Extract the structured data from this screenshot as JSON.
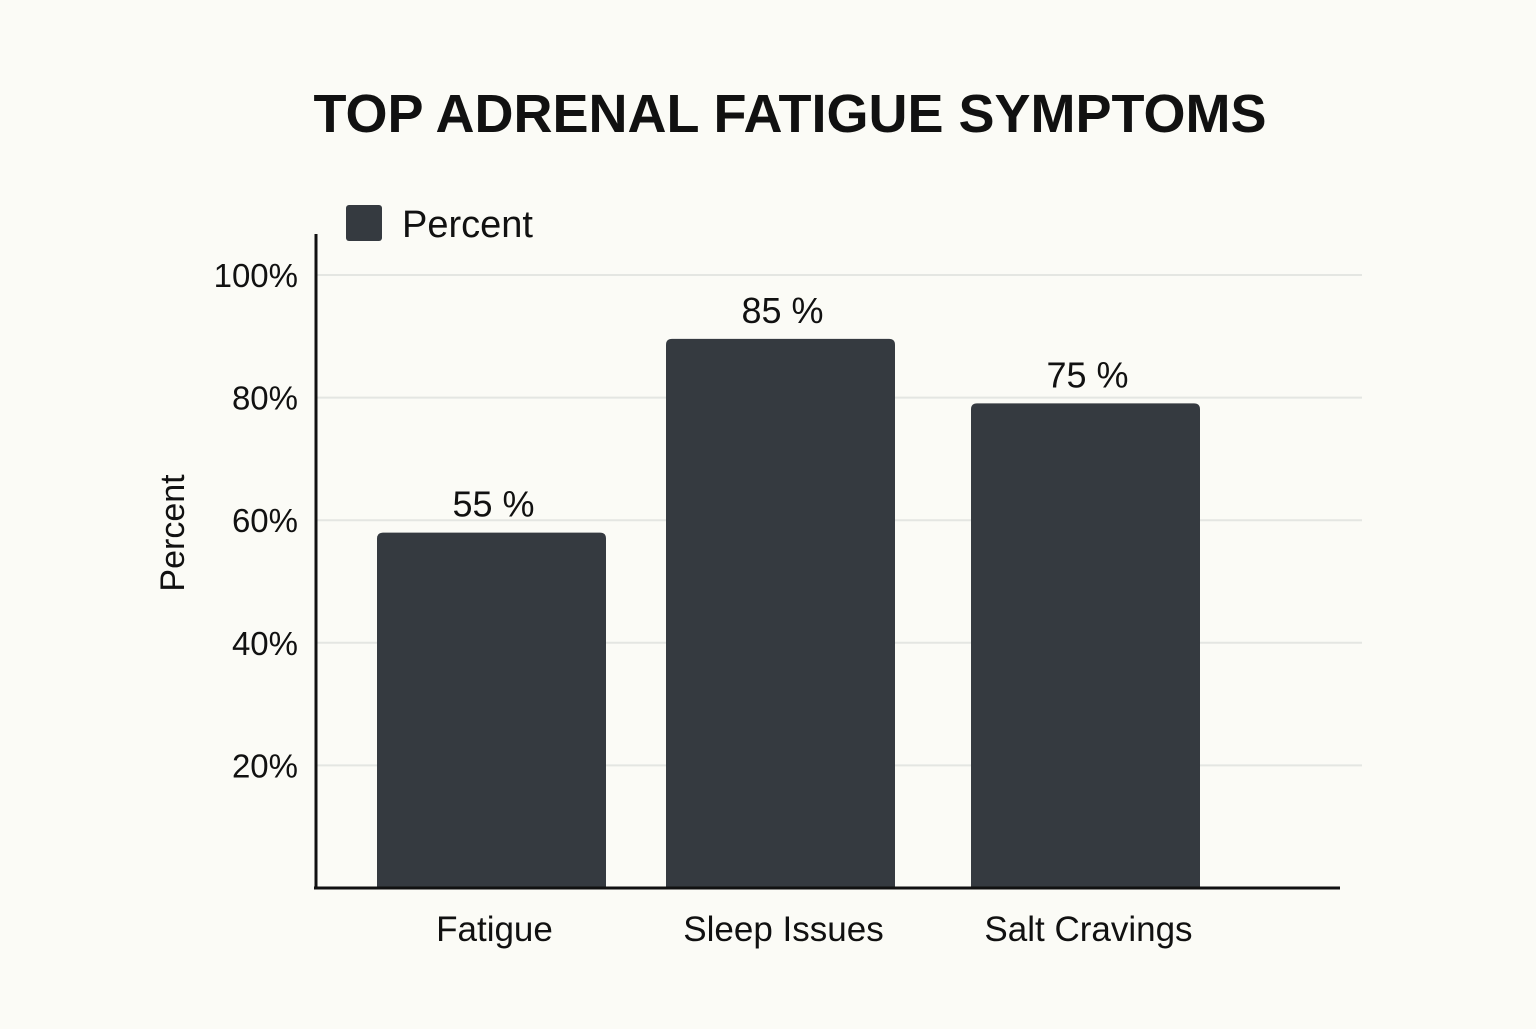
{
  "chart_data": {
    "type": "bar",
    "title": "TOP ADRENAL FATIGUE SYMPTOMS",
    "xlabel": "",
    "ylabel": "Percent",
    "legend": {
      "label": "Percent",
      "position": "top-left"
    },
    "categories": [
      "Fatigue",
      "Sleep Issues",
      "Salt Cravings"
    ],
    "series": [
      {
        "name": "Percent",
        "values": [
          55,
          85,
          75
        ]
      }
    ],
    "data_labels": [
      "55 %",
      "85 %",
      "75 %"
    ],
    "yticks": [
      20,
      40,
      60,
      80,
      100
    ],
    "ytick_labels": [
      "20%",
      "40%",
      "60%",
      "80%",
      "100%"
    ],
    "ylim": [
      0,
      100
    ],
    "grid": true,
    "colors": {
      "bar": "#353a40",
      "axis": "#111111",
      "grid": "#e4e6e2",
      "background": "#fbfbf6"
    }
  }
}
